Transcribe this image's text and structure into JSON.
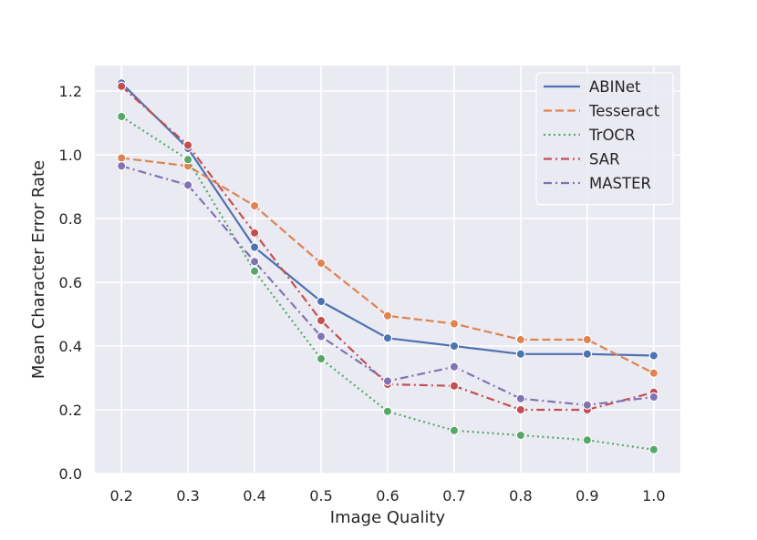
{
  "chart_data": {
    "type": "line",
    "title": "",
    "xlabel": "Image Quality",
    "ylabel": "Mean Character Error Rate",
    "x": [
      0.2,
      0.3,
      0.4,
      0.5,
      0.6,
      0.7,
      0.8,
      0.9,
      1.0
    ],
    "x_tick_labels": [
      "0.2",
      "0.3",
      "0.4",
      "0.5",
      "0.6",
      "0.7",
      "0.8",
      "0.9",
      "1.0"
    ],
    "y_ticks": [
      0.0,
      0.2,
      0.4,
      0.6,
      0.8,
      1.0,
      1.2
    ],
    "y_tick_labels": [
      "0.0",
      "0.2",
      "0.4",
      "0.6",
      "0.8",
      "1.0",
      "1.2"
    ],
    "xlim": [
      0.16,
      1.04
    ],
    "ylim": [
      0.0,
      1.28
    ],
    "grid": true,
    "legend_position": "top-right",
    "series": [
      {
        "name": "ABINet",
        "color": "#4c72b0",
        "dash": "solid",
        "values": [
          1.225,
          1.02,
          0.71,
          0.54,
          0.425,
          0.4,
          0.375,
          0.375,
          0.37
        ]
      },
      {
        "name": "Tesseract",
        "color": "#dd8452",
        "dash": "dashed",
        "values": [
          0.99,
          0.965,
          0.84,
          0.66,
          0.495,
          0.47,
          0.42,
          0.42,
          0.315
        ]
      },
      {
        "name": "TrOCR",
        "color": "#55a868",
        "dash": "dotted",
        "values": [
          1.12,
          0.985,
          0.635,
          0.36,
          0.195,
          0.135,
          0.12,
          0.105,
          0.075
        ]
      },
      {
        "name": "SAR",
        "color": "#c44e52",
        "dash": "dashdot",
        "values": [
          1.215,
          1.03,
          0.755,
          0.48,
          0.28,
          0.275,
          0.2,
          0.2,
          0.255
        ]
      },
      {
        "name": "MASTER",
        "color": "#8172b3",
        "dash": "dashdot",
        "values": [
          0.965,
          0.905,
          0.665,
          0.43,
          0.29,
          0.335,
          0.235,
          0.215,
          0.24
        ]
      }
    ]
  }
}
